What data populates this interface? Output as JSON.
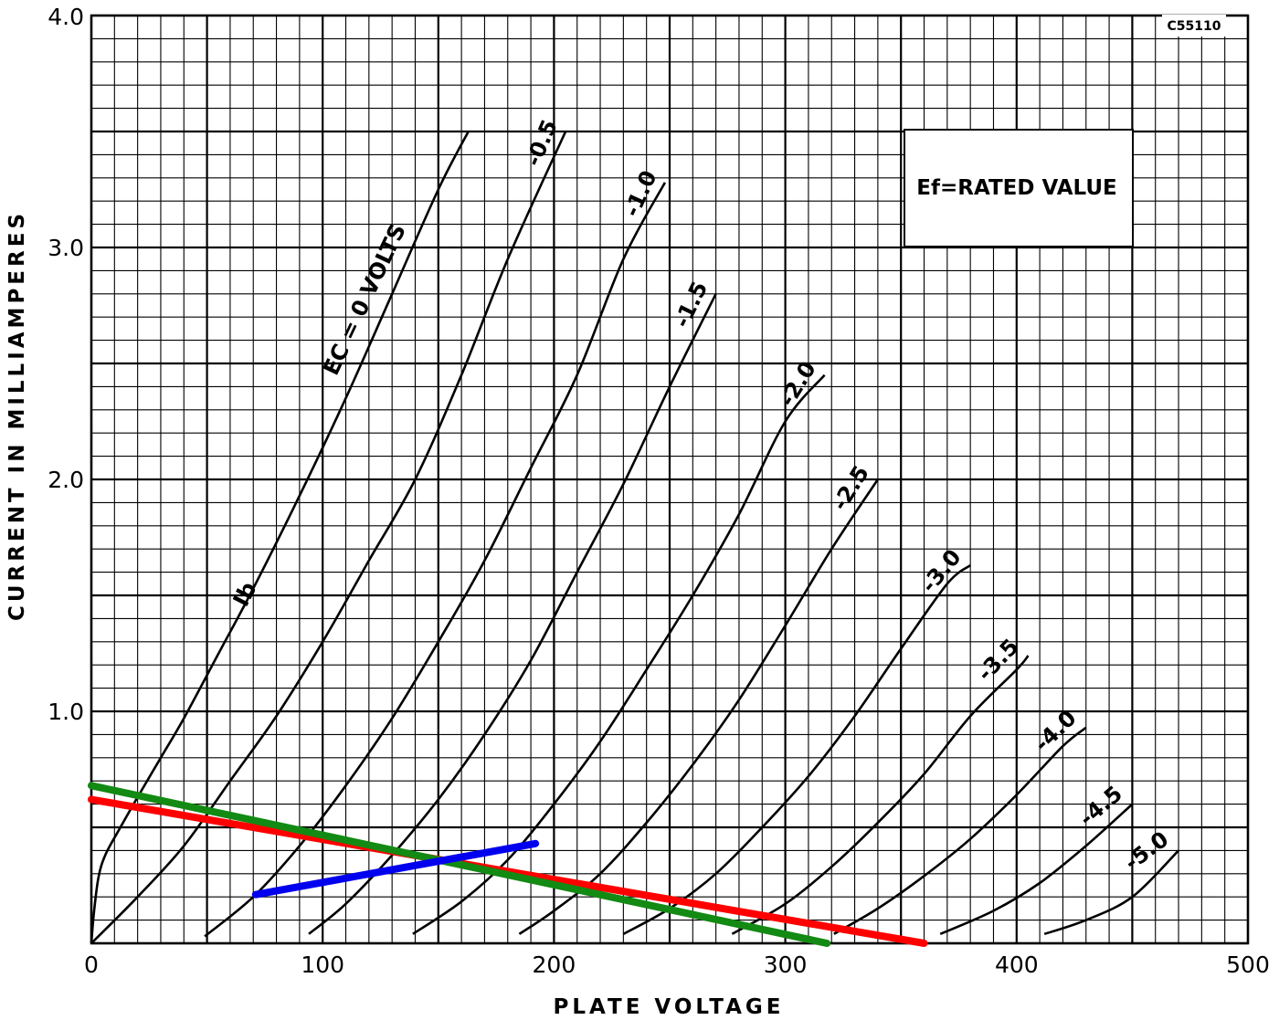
{
  "chart_data": {
    "type": "line",
    "xlabel": "PLATE VOLTAGE",
    "ylabel": "CURRENT IN MILLIAMPERES",
    "xlim": [
      0,
      500
    ],
    "ylim": [
      0,
      4.0
    ],
    "x_ticks": [
      "0",
      "100",
      "200",
      "300",
      "400",
      "500"
    ],
    "y_ticks": [
      "1.0",
      "2.0",
      "3.0",
      "4.0"
    ],
    "grid": true,
    "annotation_box": "Ef=RATED VALUE",
    "corner_code": "C55110",
    "ib_label": "Ib",
    "series": [
      {
        "label": "EC = 0 VOLTS",
        "points": [
          [
            0,
            0
          ],
          [
            1,
            0.12
          ],
          [
            3,
            0.28
          ],
          [
            6,
            0.38
          ],
          [
            12,
            0.49
          ],
          [
            20,
            0.63
          ],
          [
            30,
            0.8
          ],
          [
            40,
            0.97
          ],
          [
            55,
            1.25
          ],
          [
            70,
            1.53
          ],
          [
            90,
            1.93
          ],
          [
            110,
            2.35
          ],
          [
            130,
            2.8
          ],
          [
            150,
            3.25
          ],
          [
            163,
            3.5
          ]
        ]
      },
      {
        "label": "-0.5",
        "points": [
          [
            0,
            0
          ],
          [
            20,
            0.2
          ],
          [
            40,
            0.42
          ],
          [
            60,
            0.7
          ],
          [
            80,
            0.98
          ],
          [
            100,
            1.3
          ],
          [
            120,
            1.65
          ],
          [
            140,
            2.0
          ],
          [
            160,
            2.45
          ],
          [
            180,
            2.95
          ],
          [
            205,
            3.5
          ]
        ]
      },
      {
        "label": "-1.0",
        "points": [
          [
            49,
            0.03
          ],
          [
            70,
            0.2
          ],
          [
            90,
            0.42
          ],
          [
            110,
            0.68
          ],
          [
            130,
            0.97
          ],
          [
            150,
            1.3
          ],
          [
            170,
            1.65
          ],
          [
            190,
            2.05
          ],
          [
            210,
            2.45
          ],
          [
            230,
            2.95
          ],
          [
            248,
            3.28
          ]
        ]
      },
      {
        "label": "-1.5",
        "points": [
          [
            94,
            0.04
          ],
          [
            110,
            0.17
          ],
          [
            130,
            0.38
          ],
          [
            150,
            0.62
          ],
          [
            170,
            0.9
          ],
          [
            190,
            1.22
          ],
          [
            210,
            1.6
          ],
          [
            230,
            1.98
          ],
          [
            250,
            2.4
          ],
          [
            270,
            2.8
          ]
        ]
      },
      {
        "label": "-2.0",
        "points": [
          [
            139,
            0.04
          ],
          [
            160,
            0.18
          ],
          [
            180,
            0.36
          ],
          [
            200,
            0.6
          ],
          [
            220,
            0.87
          ],
          [
            240,
            1.18
          ],
          [
            260,
            1.5
          ],
          [
            280,
            1.85
          ],
          [
            300,
            2.25
          ],
          [
            317,
            2.45
          ]
        ]
      },
      {
        "label": "-2.5",
        "points": [
          [
            185,
            0.04
          ],
          [
            200,
            0.14
          ],
          [
            220,
            0.3
          ],
          [
            240,
            0.52
          ],
          [
            260,
            0.77
          ],
          [
            280,
            1.05
          ],
          [
            300,
            1.37
          ],
          [
            320,
            1.7
          ],
          [
            340,
            2.0
          ]
        ]
      },
      {
        "label": "-3.0",
        "points": [
          [
            230,
            0.04
          ],
          [
            250,
            0.15
          ],
          [
            270,
            0.3
          ],
          [
            290,
            0.5
          ],
          [
            310,
            0.72
          ],
          [
            330,
            0.98
          ],
          [
            350,
            1.27
          ],
          [
            370,
            1.55
          ],
          [
            380,
            1.63
          ]
        ]
      },
      {
        "label": "-3.5",
        "points": [
          [
            277,
            0.04
          ],
          [
            300,
            0.17
          ],
          [
            320,
            0.33
          ],
          [
            340,
            0.52
          ],
          [
            360,
            0.73
          ],
          [
            380,
            0.98
          ],
          [
            400,
            1.18
          ],
          [
            405,
            1.24
          ]
        ]
      },
      {
        "label": "-4.0",
        "points": [
          [
            321,
            0.04
          ],
          [
            340,
            0.15
          ],
          [
            360,
            0.29
          ],
          [
            380,
            0.45
          ],
          [
            400,
            0.64
          ],
          [
            420,
            0.85
          ],
          [
            430,
            0.93
          ]
        ]
      },
      {
        "label": "-4.5",
        "points": [
          [
            367,
            0.04
          ],
          [
            390,
            0.14
          ],
          [
            410,
            0.26
          ],
          [
            430,
            0.42
          ],
          [
            450,
            0.6
          ]
        ]
      },
      {
        "label": "-5.0",
        "points": [
          [
            412,
            0.04
          ],
          [
            430,
            0.1
          ],
          [
            450,
            0.2
          ],
          [
            470,
            0.4
          ]
        ]
      }
    ],
    "overlay_lines": [
      {
        "color": "#ff0000",
        "points": [
          [
            0,
            0.62
          ],
          [
            360,
            0
          ]
        ]
      },
      {
        "color": "#138a13",
        "points": [
          [
            0,
            0.68
          ],
          [
            318,
            0
          ]
        ]
      },
      {
        "color": "#0000ee",
        "points": [
          [
            71,
            0.21
          ],
          [
            192,
            0.43
          ]
        ]
      }
    ]
  }
}
